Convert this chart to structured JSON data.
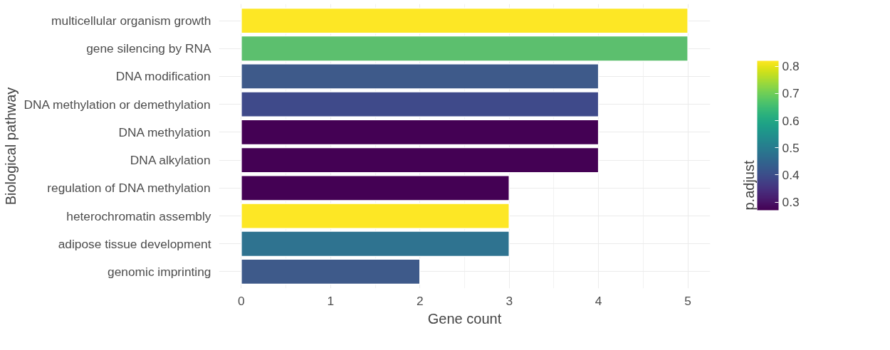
{
  "chart_data": {
    "type": "bar",
    "orientation": "horizontal",
    "xlabel": "Gene count",
    "ylabel": "Biological pathway",
    "clabel": "p.adjust",
    "categories": [
      "multicellular organism growth",
      "gene silencing by RNA",
      "DNA modification",
      "DNA methylation or demethylation",
      "DNA methylation",
      "DNA alkylation",
      "regulation of DNA methylation",
      "heterochromatin assembly",
      "adipose tissue development",
      "genomic imprinting"
    ],
    "values": [
      5,
      5,
      4,
      4,
      4,
      4,
      3,
      3,
      3,
      2
    ],
    "colors": [
      "#fde725",
      "#5cbf6e",
      "#3e5a8a",
      "#3f4a8a",
      "#440154",
      "#440154",
      "#440154",
      "#fde725",
      "#2f7390",
      "#3e5a8a"
    ],
    "xlim": [
      -0.25,
      5.25
    ],
    "xticks": [
      0,
      1,
      2,
      3,
      4,
      5
    ],
    "clim": [
      0.27,
      0.82
    ],
    "cticks": [
      0.3,
      0.4,
      0.5,
      0.6,
      0.7,
      0.8
    ],
    "grid": true
  }
}
